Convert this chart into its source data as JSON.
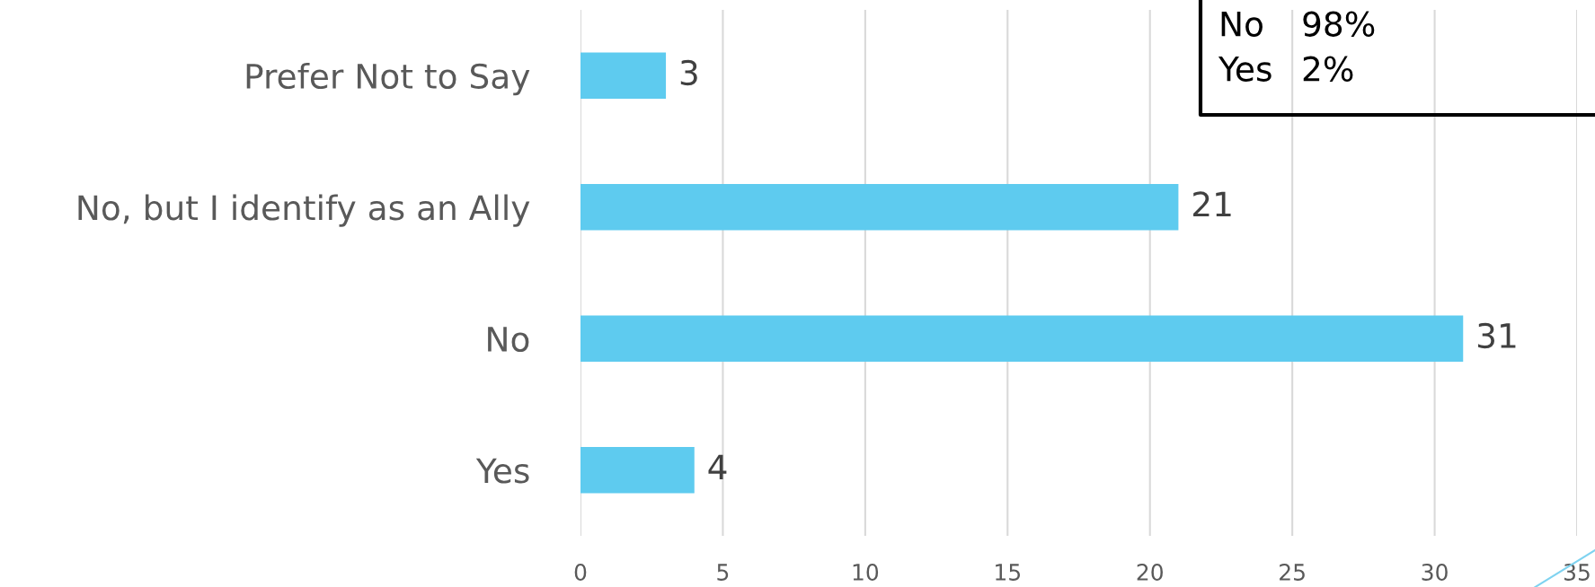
{
  "chart_data": {
    "type": "bar",
    "orientation": "horizontal",
    "categories": [
      "Prefer Not to Say",
      "No, but I identify as an Ally",
      "No",
      "Yes"
    ],
    "values": [
      3,
      21,
      31,
      4
    ],
    "color": "#5ecbef",
    "data_labels": true,
    "xlim": [
      0,
      35
    ],
    "xticks": [
      0,
      5,
      10,
      15,
      20,
      25,
      30,
      35
    ],
    "grid": "x",
    "legend": false,
    "annotations": [
      "No 98%",
      "Yes 2%"
    ]
  }
}
